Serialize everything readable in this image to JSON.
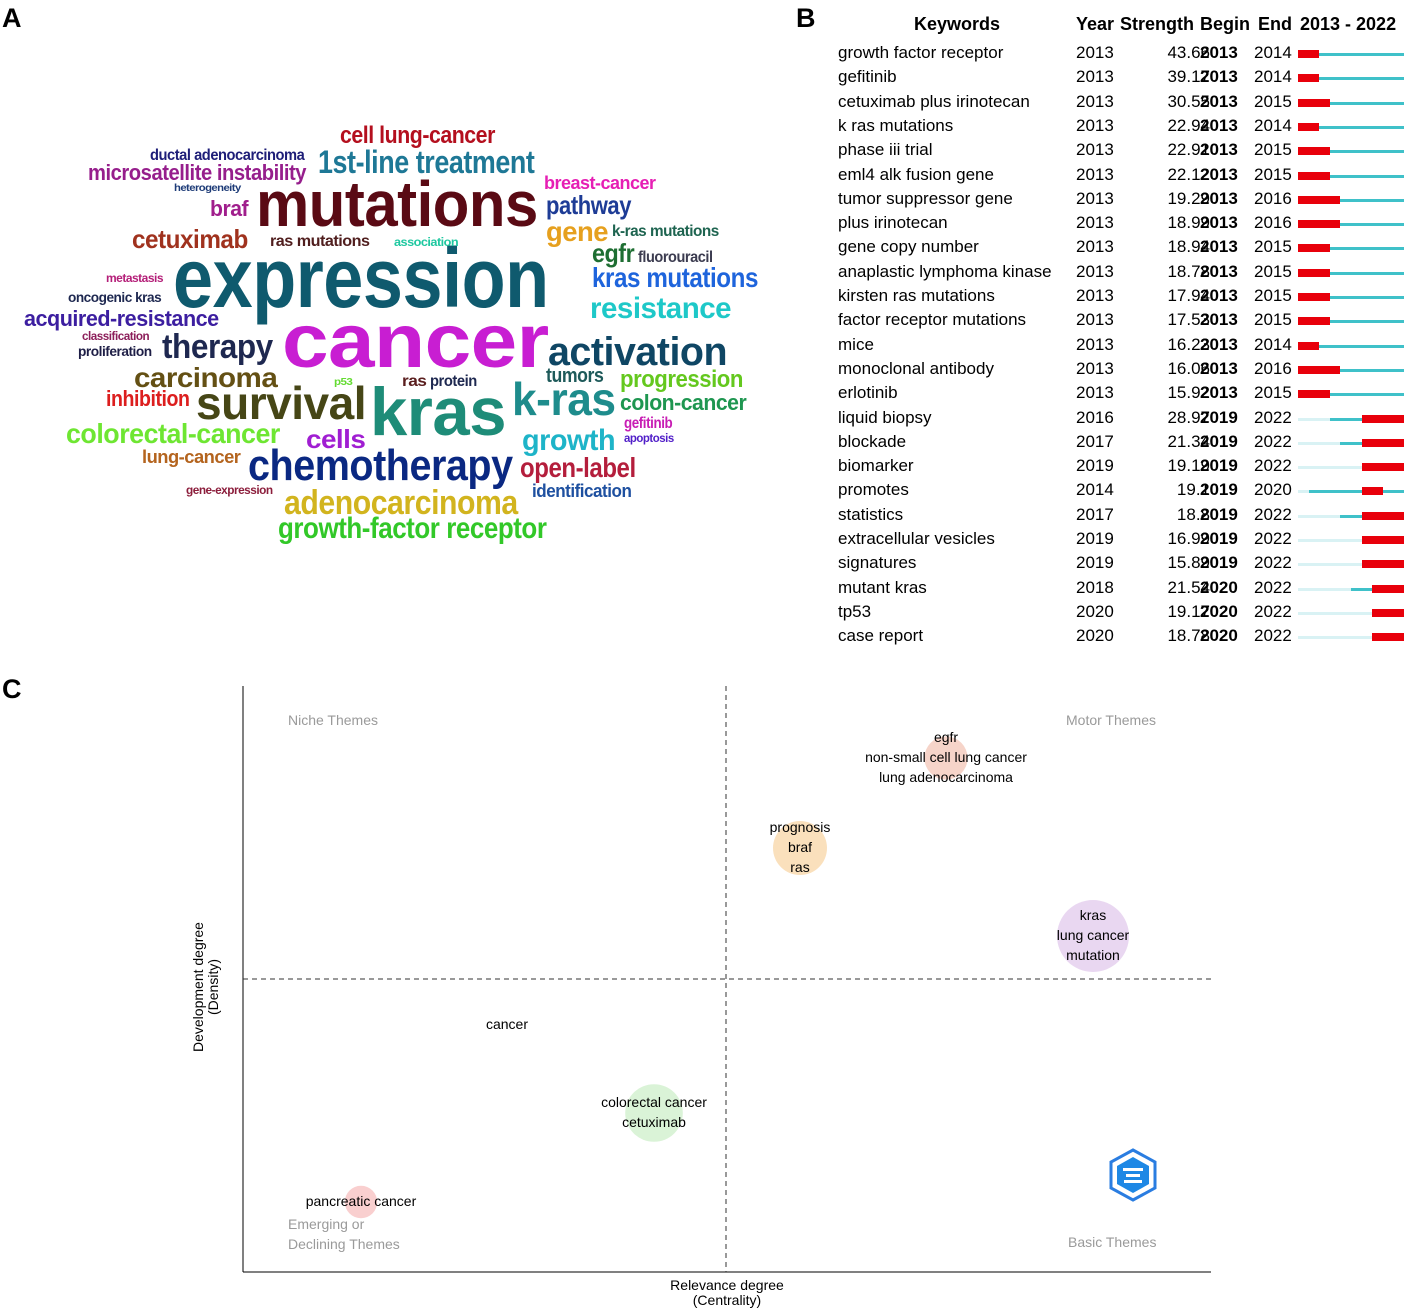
{
  "panels": {
    "a": "A",
    "b": "B",
    "c": "C"
  },
  "word_cloud": [
    {
      "text": "expression",
      "color": "#0f5a6e"
    },
    {
      "text": "cancer",
      "color": "#c81ed2"
    },
    {
      "text": "mutations",
      "color": "#5a0a14"
    },
    {
      "text": "kras",
      "color": "#1e8c78"
    },
    {
      "text": "survival",
      "color": "#464616"
    },
    {
      "text": "chemotherapy",
      "color": "#0a2882"
    },
    {
      "text": "activation",
      "color": "#0f4664"
    },
    {
      "text": "k-ras",
      "color": "#1e8c8c"
    },
    {
      "text": "therapy",
      "color": "#1e2850"
    },
    {
      "text": "1st-line treatment",
      "color": "#1e7896"
    },
    {
      "text": "cell lung-cancer",
      "color": "#b40f1e"
    },
    {
      "text": "resistance",
      "color": "#1ec8c8"
    },
    {
      "text": "kras mutations",
      "color": "#1e64dc"
    },
    {
      "text": "adenocarcinoma",
      "color": "#d2b41e"
    },
    {
      "text": "growth-factor receptor",
      "color": "#32c828"
    },
    {
      "text": "colorectal-cancer",
      "color": "#6ee632"
    },
    {
      "text": "carcinoma",
      "color": "#645014"
    },
    {
      "text": "growth",
      "color": "#1eb4c8"
    },
    {
      "text": "cells",
      "color": "#a01ed2"
    },
    {
      "text": "open-label",
      "color": "#b41e3c"
    },
    {
      "text": "microsatellite instability",
      "color": "#961e8c"
    },
    {
      "text": "cetuximab",
      "color": "#a0321e"
    },
    {
      "text": "acquired-resistance",
      "color": "#3c1ea0"
    },
    {
      "text": "progression",
      "color": "#64c81e"
    },
    {
      "text": "colon-cancer",
      "color": "#1e9650"
    },
    {
      "text": "pathway",
      "color": "#1e3c96"
    },
    {
      "text": "gene",
      "color": "#e6a01e"
    },
    {
      "text": "egfr",
      "color": "#1e6e32"
    },
    {
      "text": "inhibition",
      "color": "#dc1e1e"
    },
    {
      "text": "breast-cancer",
      "color": "#e61eb4"
    },
    {
      "text": "identification",
      "color": "#1e50a0"
    },
    {
      "text": "lung-cancer",
      "color": "#b4641e"
    },
    {
      "text": "tumors",
      "color": "#1e5a5a"
    },
    {
      "text": "braf",
      "color": "#a01e8c"
    },
    {
      "text": "ductal adenocarcinoma",
      "color": "#1e1e78"
    },
    {
      "text": "ras mutations",
      "color": "#501e1e"
    },
    {
      "text": "k-ras mutations",
      "color": "#1e6450"
    },
    {
      "text": "fluorouracil",
      "color": "#3c3c50"
    },
    {
      "text": "oncogenic kras",
      "color": "#1e2850"
    },
    {
      "text": "proliferation",
      "color": "#1e1e46"
    },
    {
      "text": "gefitinib",
      "color": "#c81eb4"
    },
    {
      "text": "apoptosis",
      "color": "#501ec8"
    },
    {
      "text": "ras",
      "color": "#5a1e1e"
    },
    {
      "text": "protein",
      "color": "#1e2850"
    },
    {
      "text": "association",
      "color": "#1ec8a0"
    },
    {
      "text": "metastasis",
      "color": "#b41e78"
    },
    {
      "text": "classification",
      "color": "#8c1e5a"
    },
    {
      "text": "heterogeneity",
      "color": "#1e3c78"
    },
    {
      "text": "gene-expression",
      "color": "#8c1e3c"
    },
    {
      "text": "p53",
      "color": "#64dc32"
    }
  ],
  "burst": {
    "headers": {
      "keywords": "Keywords",
      "year": "Year",
      "strength": "Strength",
      "begin": "Begin",
      "end": "End",
      "range": "2013 - 2022"
    },
    "range_start": 2013,
    "range_end": 2022,
    "colors": {
      "burst": "#e8000b",
      "active": "#3fc1c9",
      "inactive": "#d9f2f4"
    },
    "rows": [
      {
        "keyword": "growth factor receptor",
        "year": "2013",
        "strength": "43.66",
        "begin": "2013",
        "end": "2014"
      },
      {
        "keyword": "gefitinib",
        "year": "2013",
        "strength": "39.17",
        "begin": "2013",
        "end": "2014"
      },
      {
        "keyword": "cetuximab plus irinotecan",
        "year": "2013",
        "strength": "30.55",
        "begin": "2013",
        "end": "2015"
      },
      {
        "keyword": "k ras mutations",
        "year": "2013",
        "strength": "22.94",
        "begin": "2013",
        "end": "2014"
      },
      {
        "keyword": "phase iii trial",
        "year": "2013",
        "strength": "22.91",
        "begin": "2013",
        "end": "2015"
      },
      {
        "keyword": "eml4 alk fusion gene",
        "year": "2013",
        "strength": "22.12",
        "begin": "2013",
        "end": "2015"
      },
      {
        "keyword": "tumor suppressor gene",
        "year": "2013",
        "strength": "19.29",
        "begin": "2013",
        "end": "2016"
      },
      {
        "keyword": "plus irinotecan",
        "year": "2013",
        "strength": "18.99",
        "begin": "2013",
        "end": "2016"
      },
      {
        "keyword": "gene copy number",
        "year": "2013",
        "strength": "18.94",
        "begin": "2013",
        "end": "2015"
      },
      {
        "keyword": "anaplastic lymphoma kinase",
        "year": "2013",
        "strength": "18.78",
        "begin": "2013",
        "end": "2015"
      },
      {
        "keyword": "kirsten ras mutations",
        "year": "2013",
        "strength": "17.94",
        "begin": "2013",
        "end": "2015"
      },
      {
        "keyword": "factor receptor mutations",
        "year": "2013",
        "strength": "17.53",
        "begin": "2013",
        "end": "2015"
      },
      {
        "keyword": "mice",
        "year": "2013",
        "strength": "16.23",
        "begin": "2013",
        "end": "2014"
      },
      {
        "keyword": "monoclonal antibody",
        "year": "2013",
        "strength": "16.06",
        "begin": "2013",
        "end": "2016"
      },
      {
        "keyword": "erlotinib",
        "year": "2013",
        "strength": "15.92",
        "begin": "2013",
        "end": "2015"
      },
      {
        "keyword": "liquid biopsy",
        "year": "2016",
        "strength": "28.97",
        "begin": "2019",
        "end": "2022"
      },
      {
        "keyword": "blockade",
        "year": "2017",
        "strength": "21.34",
        "begin": "2019",
        "end": "2022"
      },
      {
        "keyword": "biomarker",
        "year": "2019",
        "strength": "19.19",
        "begin": "2019",
        "end": "2022"
      },
      {
        "keyword": "promotes",
        "year": "2014",
        "strength": "19.1",
        "begin": "2019",
        "end": "2020"
      },
      {
        "keyword": "statistics",
        "year": "2017",
        "strength": "18.8",
        "begin": "2019",
        "end": "2022"
      },
      {
        "keyword": "extracellular vesicles",
        "year": "2019",
        "strength": "16.99",
        "begin": "2019",
        "end": "2022"
      },
      {
        "keyword": "signatures",
        "year": "2019",
        "strength": "15.89",
        "begin": "2019",
        "end": "2022"
      },
      {
        "keyword": "mutant kras",
        "year": "2018",
        "strength": "21.54",
        "begin": "2020",
        "end": "2022"
      },
      {
        "keyword": "tp53",
        "year": "2020",
        "strength": "19.17",
        "begin": "2020",
        "end": "2022"
      },
      {
        "keyword": "case report",
        "year": "2020",
        "strength": "18.78",
        "begin": "2020",
        "end": "2022"
      }
    ]
  },
  "chart_data": {
    "type": "scatter",
    "xlabel": "Relevance degree\n(Centrality)",
    "ylabel": "Development degree\n(Density)",
    "quadrants": {
      "top_left": "Niche Themes",
      "top_right": "Motor Themes",
      "bottom_left": "Emerging or\nDeclining Themes",
      "bottom_right": "Basic Themes"
    },
    "clusters": [
      {
        "terms": [
          "egfr",
          "non-small cell lung cancer",
          "lung adenocarcinoma"
        ],
        "color": "#f4cdbf",
        "relative_size": 0.6
      },
      {
        "terms": [
          "prognosis",
          "braf",
          "ras"
        ],
        "color": "#f9dbb0",
        "relative_size": 0.75
      },
      {
        "terms": [
          "kras",
          "lung cancer",
          "mutation"
        ],
        "color": "#e5d0ef",
        "relative_size": 1.0
      },
      {
        "terms": [
          "cancer"
        ],
        "color": "#e8e8e8",
        "relative_size": 0.0
      },
      {
        "terms": [
          "colorectal cancer",
          "cetuximab"
        ],
        "color": "#d4f1d0",
        "relative_size": 0.8
      },
      {
        "terms": [
          "pancreatic cancer"
        ],
        "color": "#f8c7c7",
        "relative_size": 0.45
      }
    ]
  }
}
